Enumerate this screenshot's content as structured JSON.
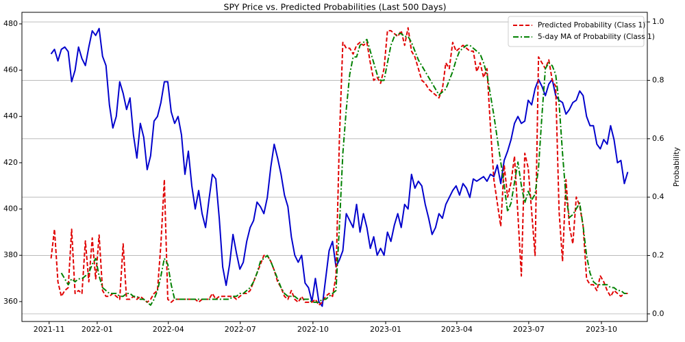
{
  "chart_data": {
    "type": "line",
    "title": "SPY Price vs. Predicted Probabilities (Last 500 Days)",
    "y2label": "Probability",
    "xlim": [
      2021.739,
      2023.907
    ],
    "xticks": [
      {
        "value": 2021.8333,
        "label": "2021-11"
      },
      {
        "value": 2022.0,
        "label": "2022-01"
      },
      {
        "value": 2022.2466,
        "label": "2022-04"
      },
      {
        "value": 2022.4959,
        "label": "2022-07"
      },
      {
        "value": 2022.7479,
        "label": "2022-10"
      },
      {
        "value": 2023.0,
        "label": "2023-01"
      },
      {
        "value": 2023.2466,
        "label": "2023-04"
      },
      {
        "value": 2023.4959,
        "label": "2023-07"
      },
      {
        "value": 2023.7479,
        "label": "2023-10"
      }
    ],
    "ylim": [
      351.4,
      485
    ],
    "yticks": [
      360,
      380,
      400,
      420,
      440,
      460,
      480
    ],
    "y2lim": [
      -0.026,
      1.033
    ],
    "y2ticks": [
      {
        "value": 0,
        "label": "0.0"
      },
      0.2,
      0.4,
      0.6,
      0.8,
      {
        "value": 1,
        "label": "1.0"
      }
    ],
    "grid": "y2",
    "legend": "upper right",
    "x": [
      2021.84,
      2021.8519,
      2021.8638,
      2021.8757,
      2021.8876,
      2021.8995,
      2021.9114,
      2021.9233,
      2021.9352,
      2021.9471,
      2021.959,
      2021.9709,
      2021.9828,
      2021.9947,
      2022.0066,
      2022.0185,
      2022.0304,
      2022.0423,
      2022.0542,
      2022.0661,
      2022.078,
      2022.0899,
      2022.1018,
      2022.1137,
      2022.1256,
      2022.1375,
      2022.1494,
      2022.1613,
      2022.1732,
      2022.1851,
      2022.197,
      2022.2089,
      2022.2208,
      2022.2327,
      2022.2446,
      2022.2565,
      2022.2684,
      2022.2803,
      2022.2922,
      2022.3041,
      2022.316,
      2022.3279,
      2022.3398,
      2022.3517,
      2022.3636,
      2022.3755,
      2022.3874,
      2022.3993,
      2022.4112,
      2022.4231,
      2022.435,
      2022.4469,
      2022.4588,
      2022.4707,
      2022.4826,
      2022.4945,
      2022.5064,
      2022.5183,
      2022.5302,
      2022.5421,
      2022.554,
      2022.5659,
      2022.5778,
      2022.5897,
      2022.6016,
      2022.6135,
      2022.6254,
      2022.6373,
      2022.6492,
      2022.6611,
      2022.673,
      2022.6849,
      2022.6968,
      2022.7087,
      2022.7206,
      2022.7325,
      2022.7444,
      2022.7563,
      2022.7682,
      2022.7801,
      2022.792,
      2022.8039,
      2022.8158,
      2022.8277,
      2022.8396,
      2022.8515,
      2022.8634,
      2022.8753,
      2022.8872,
      2022.8991,
      2022.911,
      2022.9229,
      2022.9348,
      2022.9467,
      2022.9586,
      2022.9705,
      2022.9824,
      2022.9943,
      2023.0062,
      2023.0181,
      2023.03,
      2023.0419,
      2023.0538,
      2023.0657,
      2023.0776,
      2023.0895,
      2023.1014,
      2023.1133,
      2023.1252,
      2023.1371,
      2023.149,
      2023.1609,
      2023.1728,
      2023.1847,
      2023.1966,
      2023.2085,
      2023.2204,
      2023.2323,
      2023.2442,
      2023.2561,
      2023.268,
      2023.2799,
      2023.2918,
      2023.3037,
      2023.3156,
      2023.3275,
      2023.3394,
      2023.3513,
      2023.3632,
      2023.3751,
      2023.387,
      2023.3989,
      2023.4108,
      2023.4227,
      2023.4346,
      2023.4465,
      2023.4584,
      2023.4703,
      2023.4822,
      2023.4941,
      2023.506,
      2023.5179,
      2023.5298,
      2023.5417,
      2023.5536,
      2023.5655,
      2023.5774,
      2023.5893,
      2023.6012,
      2023.6131,
      2023.625,
      2023.6369,
      2023.6488,
      2023.6607,
      2023.6726,
      2023.6845,
      2023.6964,
      2023.7083,
      2023.7202,
      2023.7321,
      2023.744,
      2023.7559,
      2023.7678,
      2023.7797,
      2023.7916,
      2023.8035,
      2023.8154,
      2023.8273,
      2023.8392
    ],
    "series": [
      {
        "color": "#0000cc",
        "dash": "solid",
        "width": 2,
        "values": [
          467,
          469,
          464,
          469,
          470,
          468,
          455,
          460,
          470,
          465,
          462,
          470,
          477,
          475,
          478,
          466,
          462,
          445,
          435,
          440,
          455,
          450,
          443,
          448,
          432,
          422,
          437,
          431,
          417,
          423,
          438,
          440,
          446,
          455,
          455,
          442,
          437,
          440,
          432,
          415,
          425,
          410,
          400,
          408,
          398,
          392,
          404,
          415,
          413,
          396,
          375,
          367,
          376,
          389,
          381,
          374,
          377,
          386,
          392,
          395,
          403,
          401,
          398,
          405,
          418,
          428,
          422,
          415,
          406,
          401,
          388,
          380,
          377,
          380,
          368,
          366,
          360,
          370,
          360,
          358,
          370,
          382,
          386,
          375,
          378,
          382,
          398,
          395,
          392,
          402,
          390,
          398,
          392,
          383,
          388,
          380,
          383,
          380,
          390,
          386,
          393,
          398,
          392,
          402,
          400,
          415,
          409,
          412,
          410,
          402,
          396,
          389,
          392,
          398,
          396,
          402,
          405,
          408,
          410,
          406,
          411,
          409,
          405,
          413,
          412,
          413,
          414,
          412,
          415,
          414,
          419,
          411,
          421,
          425,
          430,
          437,
          440,
          437,
          438,
          447,
          445,
          452,
          456,
          453,
          449,
          454,
          456,
          449,
          447,
          446,
          441,
          443,
          446,
          447,
          451,
          449,
          440,
          436,
          436,
          428,
          426,
          430,
          428,
          436,
          430,
          420,
          421,
          411,
          416
        ]
      },
      {
        "name": "Predicted Probability (Class 1)",
        "color": "#e00000",
        "dash": "dashed",
        "width": 2,
        "axis": "y2",
        "values": [
          0.19,
          0.29,
          0.11,
          0.06,
          0.08,
          0.09,
          0.29,
          0.07,
          0.08,
          0.07,
          0.25,
          0.11,
          0.26,
          0.12,
          0.27,
          0.08,
          0.06,
          0.06,
          0.07,
          0.06,
          0.05,
          0.24,
          0.05,
          0.05,
          0.06,
          0.05,
          0.06,
          0.05,
          0.04,
          0.05,
          0.07,
          0.08,
          0.24,
          0.46,
          0.05,
          0.04,
          0.05,
          0.05,
          0.05,
          0.05,
          0.05,
          0.05,
          0.05,
          0.04,
          0.05,
          0.05,
          0.05,
          0.07,
          0.05,
          0.06,
          0.06,
          0.06,
          0.06,
          0.06,
          0.05,
          0.06,
          0.07,
          0.07,
          0.08,
          0.11,
          0.14,
          0.17,
          0.2,
          0.2,
          0.18,
          0.15,
          0.11,
          0.09,
          0.06,
          0.05,
          0.08,
          0.05,
          0.04,
          0.06,
          0.04,
          0.04,
          0.04,
          0.05,
          0.03,
          0.04,
          0.06,
          0.07,
          0.06,
          0.13,
          0.6,
          0.93,
          0.91,
          0.91,
          0.89,
          0.92,
          0.93,
          0.92,
          0.93,
          0.86,
          0.8,
          0.81,
          0.79,
          0.84,
          0.97,
          0.97,
          0.96,
          0.95,
          0.97,
          0.92,
          0.98,
          0.9,
          0.88,
          0.84,
          0.8,
          0.79,
          0.77,
          0.76,
          0.75,
          0.74,
          0.77,
          0.86,
          0.84,
          0.93,
          0.9,
          0.91,
          0.92,
          0.91,
          0.9,
          0.9,
          0.83,
          0.86,
          0.81,
          0.84,
          0.64,
          0.46,
          0.38,
          0.3,
          0.51,
          0.4,
          0.45,
          0.54,
          0.34,
          0.13,
          0.55,
          0.5,
          0.35,
          0.2,
          0.88,
          0.86,
          0.84,
          0.87,
          0.8,
          0.78,
          0.35,
          0.18,
          0.46,
          0.3,
          0.24,
          0.4,
          0.37,
          0.3,
          0.12,
          0.1,
          0.1,
          0.08,
          0.13,
          0.11,
          0.08,
          0.06,
          0.08,
          0.07,
          0.06,
          0.07,
          0.07
        ]
      },
      {
        "name": "5-day MA of Probability (Class 1)",
        "color": "#008000",
        "dash": "dashdot",
        "width": 2,
        "axis": "y2",
        "values": [
          null,
          null,
          null,
          0.14,
          0.12,
          0.1,
          0.12,
          0.11,
          0.12,
          0.12,
          0.13,
          0.14,
          0.17,
          0.19,
          0.13,
          0.09,
          0.08,
          0.07,
          0.07,
          0.07,
          0.06,
          0.06,
          0.07,
          0.07,
          0.06,
          0.06,
          0.05,
          0.05,
          0.04,
          0.03,
          0.05,
          0.08,
          0.13,
          0.19,
          0.17,
          0.1,
          0.05,
          0.05,
          0.05,
          0.05,
          0.05,
          0.05,
          0.05,
          0.05,
          0.05,
          0.05,
          0.05,
          0.05,
          0.05,
          0.05,
          0.05,
          0.05,
          0.05,
          0.06,
          0.06,
          0.07,
          0.07,
          0.08,
          0.09,
          0.11,
          0.14,
          0.18,
          0.19,
          0.2,
          0.18,
          0.15,
          0.12,
          0.09,
          0.07,
          0.06,
          0.06,
          0.06,
          0.05,
          0.05,
          0.05,
          0.05,
          0.04,
          0.04,
          0.04,
          0.05,
          0.05,
          0.06,
          0.07,
          0.08,
          0.3,
          0.55,
          0.7,
          0.82,
          0.88,
          0.88,
          0.92,
          0.93,
          0.94,
          0.9,
          0.86,
          0.82,
          0.8,
          0.8,
          0.86,
          0.92,
          0.95,
          0.96,
          0.96,
          0.95,
          0.95,
          0.93,
          0.9,
          0.87,
          0.85,
          0.83,
          0.81,
          0.79,
          0.77,
          0.75,
          0.76,
          0.77,
          0.8,
          0.83,
          0.87,
          0.9,
          0.91,
          0.92,
          0.92,
          0.91,
          0.9,
          0.89,
          0.86,
          0.82,
          0.75,
          0.68,
          0.6,
          0.52,
          0.44,
          0.35,
          0.38,
          0.45,
          0.52,
          0.44,
          0.38,
          0.42,
          0.39,
          0.41,
          0.5,
          0.68,
          0.84,
          0.86,
          0.85,
          0.82,
          0.72,
          0.55,
          0.4,
          0.33,
          0.34,
          0.36,
          0.38,
          0.3,
          0.2,
          0.14,
          0.11,
          0.1,
          0.1,
          0.1,
          0.1,
          0.09,
          0.09,
          0.08,
          0.08,
          0.07,
          0.07
        ]
      }
    ]
  }
}
